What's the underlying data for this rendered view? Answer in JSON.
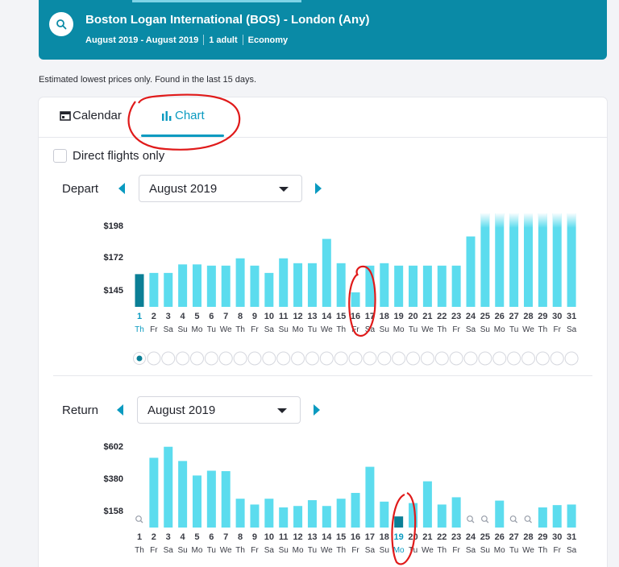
{
  "search": {
    "route": "Boston Logan International (BOS) - London (Any)",
    "dates": "August 2019 - August 2019",
    "passengers": "1 adult",
    "cabin": "Economy"
  },
  "note": "Estimated lowest prices only. Found in the last 15 days.",
  "tabs": {
    "calendar": "Calendar",
    "chart": "Chart",
    "active": "chart"
  },
  "filters": {
    "direct_only_label": "Direct flights only",
    "direct_only_checked": false
  },
  "colors": {
    "banner": "#0a8aa6",
    "accent": "#0a9ac0",
    "bar": "#5cdcee",
    "bar_selected": "#0b7f96",
    "annotation": "#e01a1a"
  },
  "depart": {
    "label": "Depart",
    "month": "August 2019",
    "selected_day": 1,
    "chart_data": {
      "type": "bar",
      "y_ticks": [
        "$198",
        "$172",
        "$145"
      ],
      "y_tick_values": [
        198,
        172,
        145
      ],
      "days": [
        "1",
        "2",
        "3",
        "4",
        "5",
        "6",
        "7",
        "8",
        "9",
        "10",
        "11",
        "12",
        "13",
        "14",
        "15",
        "16",
        "17",
        "18",
        "19",
        "20",
        "21",
        "22",
        "23",
        "24",
        "25",
        "26",
        "27",
        "28",
        "29",
        "30",
        "31"
      ],
      "weekdays": [
        "Th",
        "Fr",
        "Sa",
        "Su",
        "Mo",
        "Tu",
        "We",
        "Th",
        "Fr",
        "Sa",
        "Su",
        "Mo",
        "Tu",
        "We",
        "Th",
        "Fr",
        "Sa",
        "Su",
        "Mo",
        "Tu",
        "We",
        "Th",
        "Fr",
        "Sa",
        "Su",
        "Mo",
        "Tu",
        "We",
        "Th",
        "Fr",
        "Sa"
      ],
      "values": [
        158,
        159,
        159,
        166,
        166,
        165,
        165,
        171,
        165,
        159,
        171,
        167,
        167,
        187,
        167,
        143,
        165,
        167,
        165,
        165,
        165,
        165,
        165,
        189,
        229,
        229,
        229,
        229,
        229,
        229,
        229
      ],
      "faded_top_days": [
        "25",
        "26",
        "27",
        "28",
        "29",
        "30",
        "31"
      ]
    },
    "pages": {
      "count": 31,
      "active": 0
    }
  },
  "return": {
    "label": "Return",
    "month": "August 2019",
    "selected_day": 19,
    "chart_data": {
      "type": "bar",
      "y_ticks": [
        "$602",
        "$380",
        "$158"
      ],
      "y_tick_values": [
        602,
        380,
        158
      ],
      "days": [
        "1",
        "2",
        "3",
        "4",
        "5",
        "6",
        "7",
        "8",
        "9",
        "10",
        "11",
        "12",
        "13",
        "14",
        "15",
        "16",
        "17",
        "18",
        "19",
        "20",
        "21",
        "22",
        "23",
        "24",
        "25",
        "26",
        "27",
        "28",
        "29",
        "30",
        "31"
      ],
      "weekdays": [
        "Th",
        "Fr",
        "Sa",
        "Su",
        "Mo",
        "Tu",
        "We",
        "Th",
        "Fr",
        "Sa",
        "Su",
        "Mo",
        "Tu",
        "We",
        "Th",
        "Fr",
        "Sa",
        "Su",
        "Mo",
        "Tu",
        "We",
        "Th",
        "Fr",
        "Sa",
        "Su",
        "Mo",
        "Tu",
        "We",
        "Th",
        "Fr",
        "Sa"
      ],
      "values": [
        null,
        522,
        598,
        500,
        400,
        433,
        430,
        240,
        200,
        240,
        180,
        190,
        230,
        190,
        240,
        280,
        460,
        220,
        118,
        210,
        360,
        200,
        250,
        null,
        null,
        227,
        null,
        null,
        180,
        196,
        200
      ]
    }
  }
}
